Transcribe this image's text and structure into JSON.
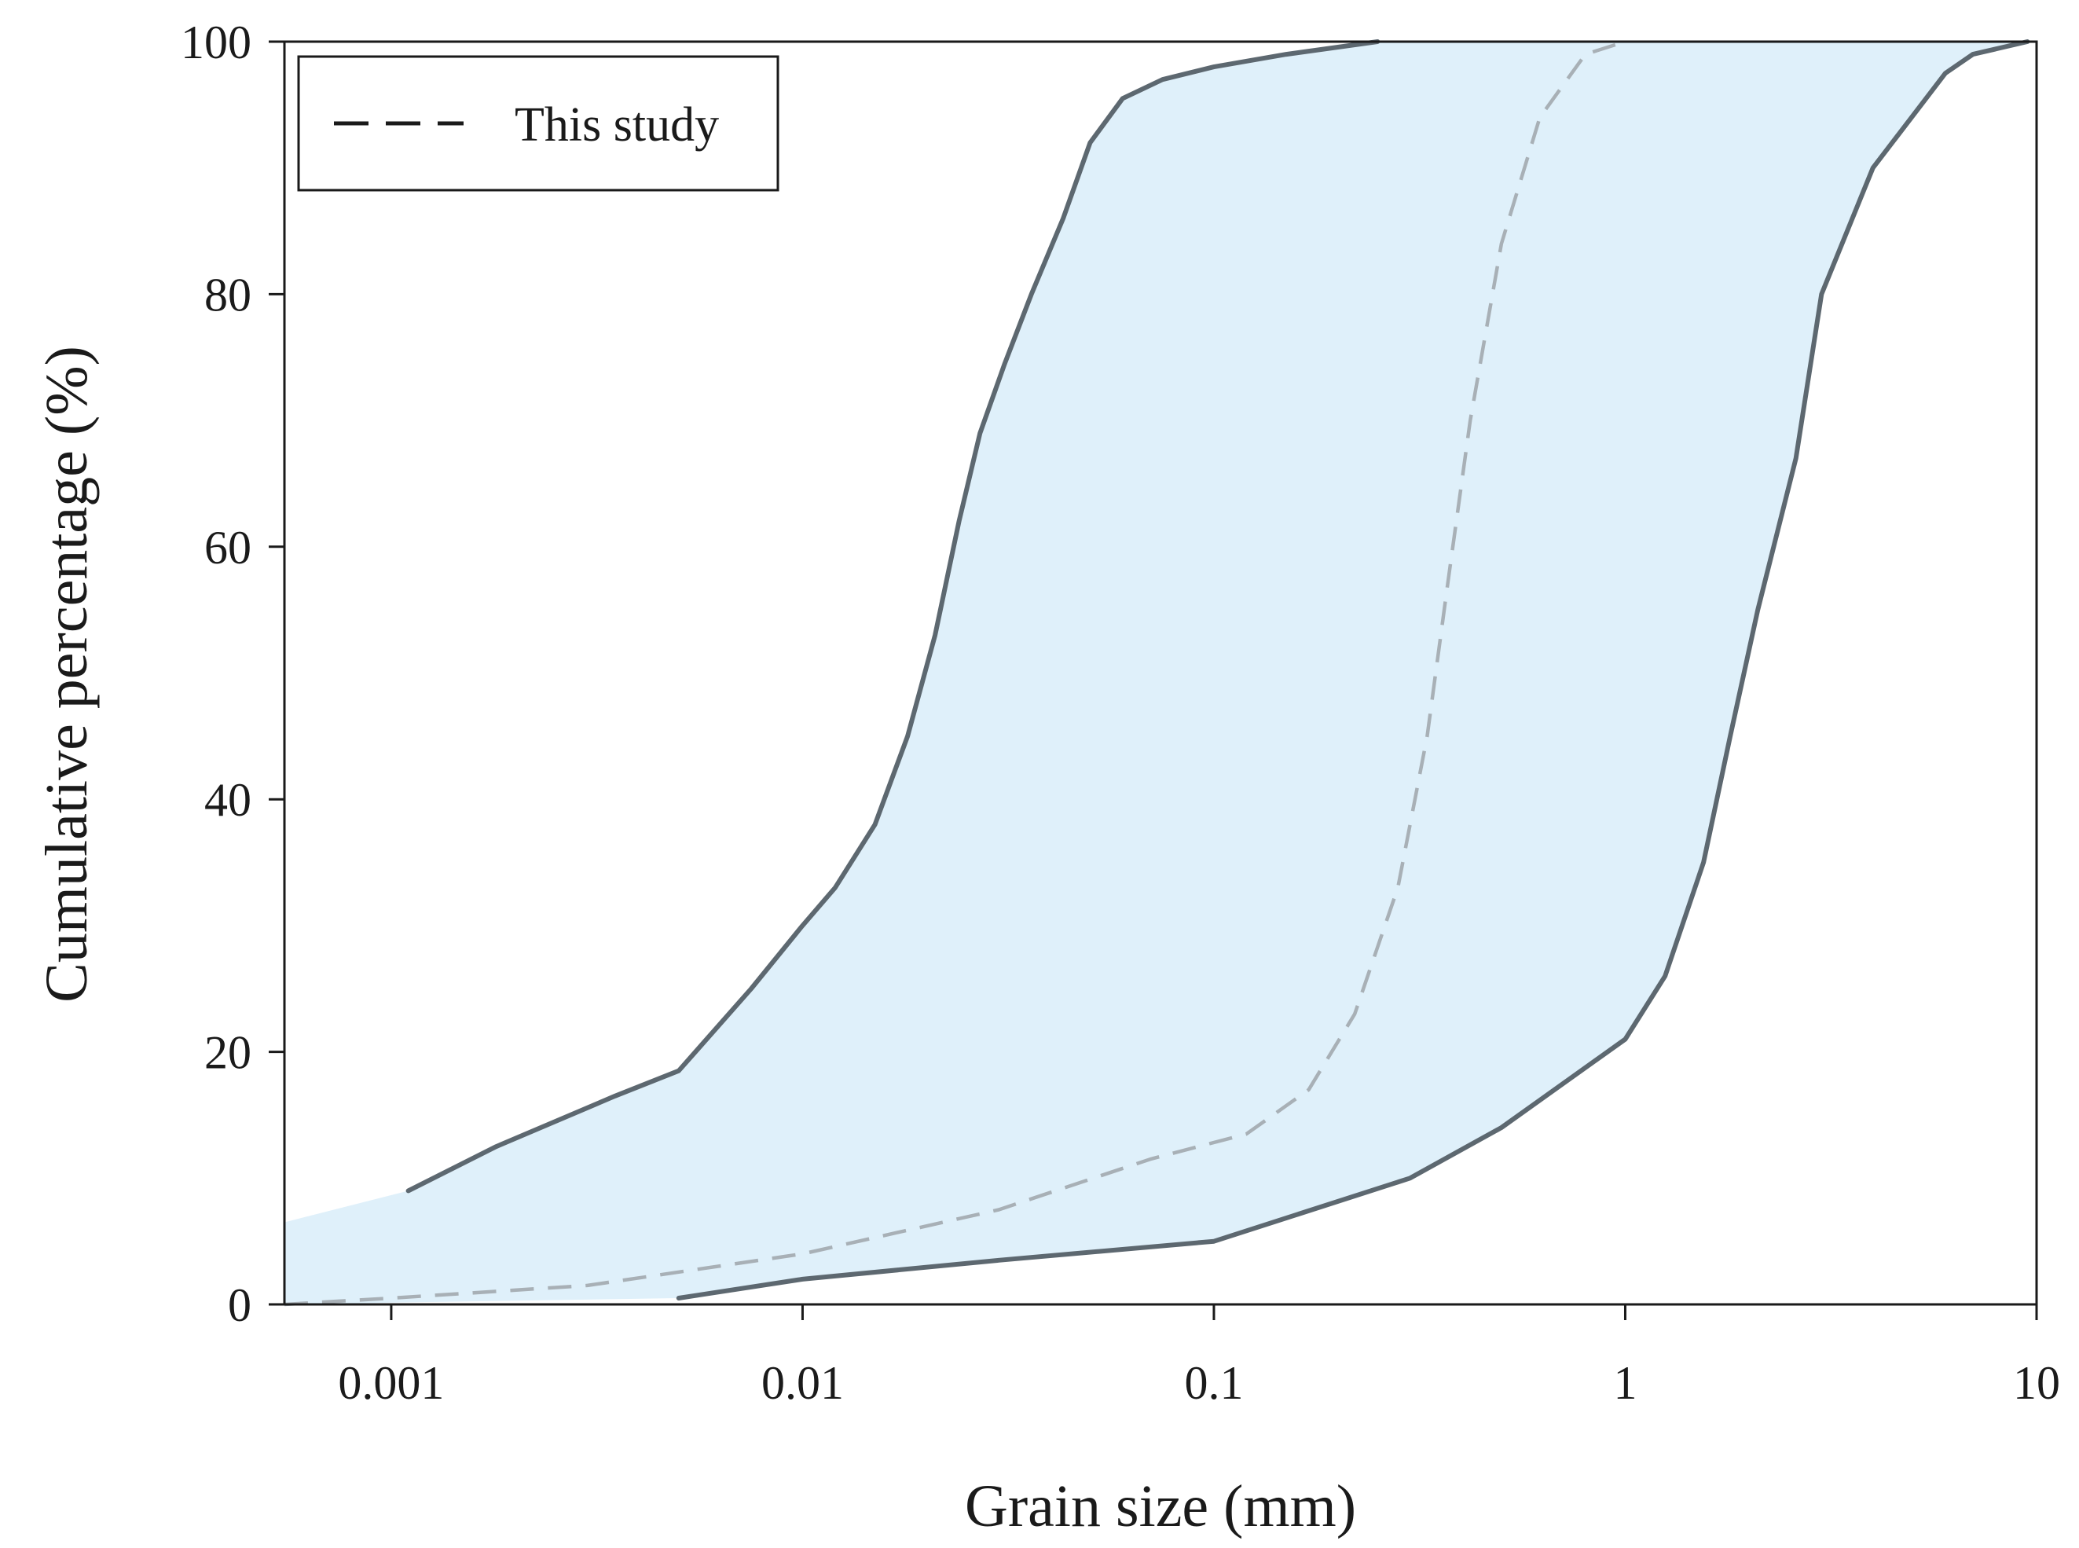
{
  "chart_data": {
    "type": "line",
    "xlabel": "Grain size (mm)",
    "ylabel": "Cumulative percentage (%)",
    "x_scale": "log",
    "xlim": [
      0.00055,
      10
    ],
    "ylim": [
      0,
      100
    ],
    "x_ticks": [
      0.001,
      0.01,
      0.1,
      1,
      10
    ],
    "x_tick_labels": [
      "0.001",
      "0.01",
      "0.1",
      "1",
      "10"
    ],
    "y_ticks": [
      0,
      20,
      40,
      60,
      80,
      100
    ],
    "y_tick_labels": [
      "0",
      "20",
      "40",
      "60",
      "80",
      "100"
    ],
    "grid": false,
    "legend": {
      "position": "top-left",
      "entries": [
        "This study"
      ]
    },
    "band": {
      "fill_color": "#dff0fa",
      "edge_color": "#5d6870",
      "upper_bound": [
        [
          0.0011,
          9
        ],
        [
          0.0018,
          12.5
        ],
        [
          0.0035,
          16.5
        ],
        [
          0.005,
          18.5
        ],
        [
          0.0075,
          25
        ],
        [
          0.01,
          30
        ],
        [
          0.012,
          33
        ],
        [
          0.015,
          38
        ],
        [
          0.018,
          45
        ],
        [
          0.021,
          53
        ],
        [
          0.024,
          62
        ],
        [
          0.027,
          69
        ],
        [
          0.031,
          74.5
        ],
        [
          0.036,
          80
        ],
        [
          0.043,
          86
        ],
        [
          0.05,
          92
        ],
        [
          0.06,
          95.5
        ],
        [
          0.075,
          97
        ],
        [
          0.1,
          98
        ],
        [
          0.15,
          99
        ],
        [
          0.25,
          100
        ]
      ],
      "lower_bound": [
        [
          0.005,
          0.5
        ],
        [
          0.01,
          2
        ],
        [
          0.03,
          3.5
        ],
        [
          0.1,
          5
        ],
        [
          0.3,
          10
        ],
        [
          0.5,
          14
        ],
        [
          1,
          21
        ],
        [
          1.25,
          26
        ],
        [
          1.55,
          35
        ],
        [
          1.8,
          45
        ],
        [
          2.1,
          55
        ],
        [
          2.6,
          67
        ],
        [
          3,
          80
        ],
        [
          4,
          90
        ],
        [
          6,
          97.5
        ],
        [
          7,
          99
        ],
        [
          9.5,
          100
        ]
      ]
    },
    "series": [
      {
        "name": "This study",
        "style": "dashed",
        "color": "#a8b0b6",
        "points": [
          [
            0.00055,
            0
          ],
          [
            0.001,
            0.5
          ],
          [
            0.003,
            1.5
          ],
          [
            0.01,
            4
          ],
          [
            0.03,
            7.5
          ],
          [
            0.07,
            11.5
          ],
          [
            0.12,
            13.5
          ],
          [
            0.17,
            17
          ],
          [
            0.22,
            23
          ],
          [
            0.28,
            33
          ],
          [
            0.33,
            45
          ],
          [
            0.37,
            57
          ],
          [
            0.42,
            70
          ],
          [
            0.5,
            84
          ],
          [
            0.62,
            94
          ],
          [
            0.8,
            99
          ],
          [
            1,
            100
          ]
        ]
      }
    ]
  }
}
